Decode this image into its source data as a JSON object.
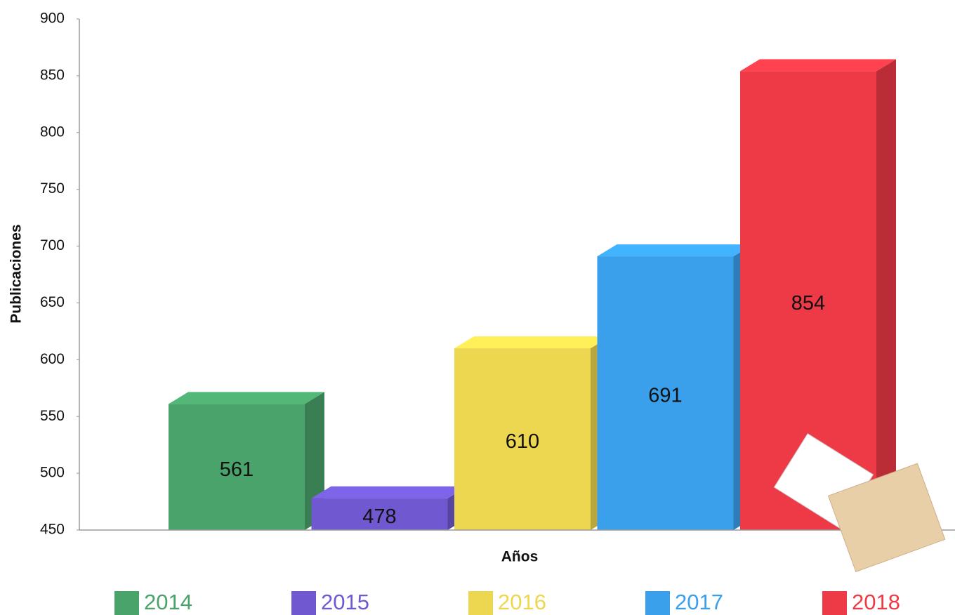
{
  "chart_data": {
    "type": "bar3d",
    "ylabel": "Publicaciones",
    "xlabel": "Años",
    "categories": [
      "2014",
      "2015",
      "2016",
      "2017",
      "2018"
    ],
    "values": [
      561,
      478,
      610,
      691,
      854
    ],
    "colors": [
      "#4aa36a",
      "#7059d0",
      "#edd650",
      "#3ba0ec",
      "#ee3a47"
    ],
    "ylim": [
      450,
      900
    ],
    "yticks": [
      450,
      500,
      550,
      600,
      650,
      700,
      750,
      800,
      850,
      900
    ],
    "legend": "bottom"
  }
}
